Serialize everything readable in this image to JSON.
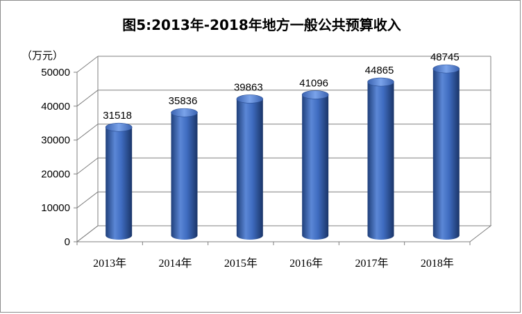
{
  "chart_data": {
    "type": "bar",
    "title": "图5:2013年-2018年地方一般公共预算收入",
    "ylabel": "（万元）",
    "xlabel": "",
    "categories": [
      "2013年",
      "2014年",
      "2015年",
      "2016年",
      "2017年",
      "2018年"
    ],
    "values": [
      31518,
      35836,
      39863,
      41096,
      44865,
      48745
    ],
    "ylim": [
      0,
      50000
    ],
    "yticks": [
      "0",
      "10000",
      "20000",
      "30000",
      "40000",
      "50000"
    ],
    "bar_color": "#4472C4",
    "grid": true,
    "legend": false,
    "style": "3d-cylinder"
  }
}
